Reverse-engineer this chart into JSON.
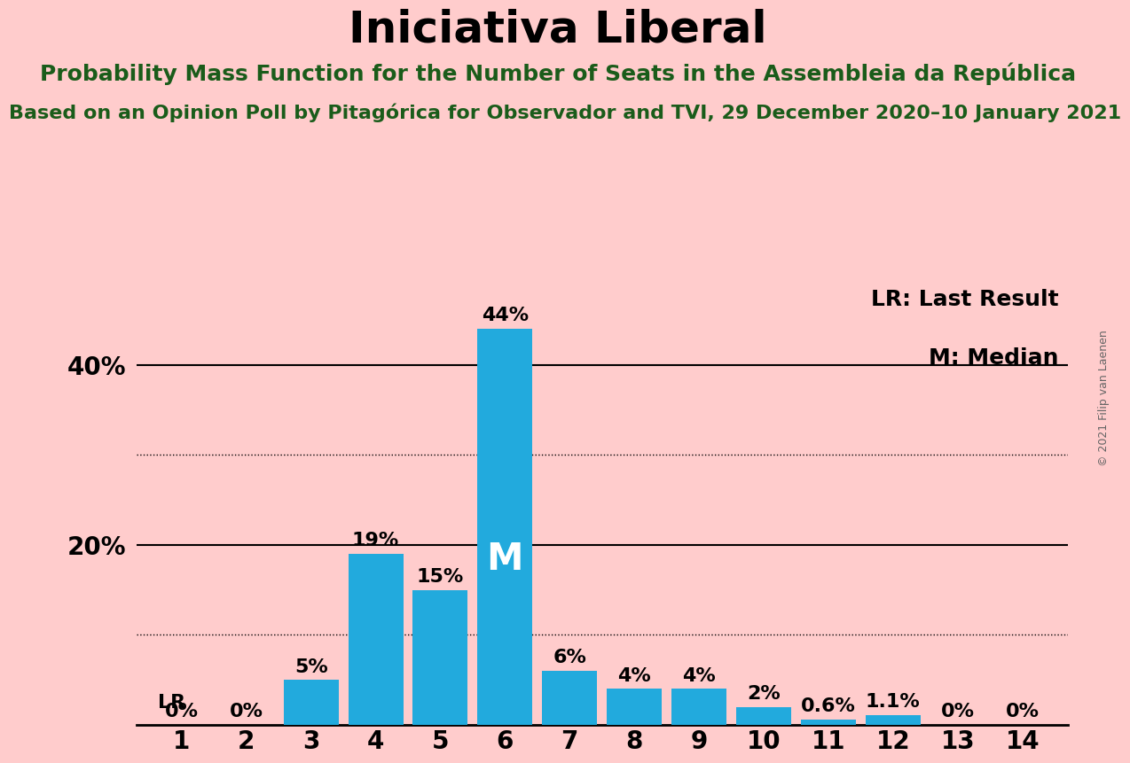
{
  "title": "Iniciativa Liberal",
  "subtitle": "Probability Mass Function for the Number of Seats in the Assembleia da República",
  "source_line": "Based on an Opinion Poll by Pitagórica for Observador and TVI, 29 December 2020–10 January 2021",
  "copyright": "© 2021 Filip van Laenen",
  "legend_lr": "LR: Last Result",
  "legend_m": "M: Median",
  "seats": [
    1,
    2,
    3,
    4,
    5,
    6,
    7,
    8,
    9,
    10,
    11,
    12,
    13,
    14
  ],
  "values": [
    0,
    0,
    5,
    19,
    15,
    44,
    6,
    4,
    4,
    2,
    0.6,
    1.1,
    0,
    0
  ],
  "bar_color": "#22aadd",
  "background_color": "#ffcccc",
  "title_color": "#000000",
  "subtitle_color": "#1a5c1a",
  "source_color": "#1a5c1a",
  "bar_label_color": "#000000",
  "median_seat": 6,
  "last_result_seat": 1,
  "ylim": [
    0,
    50
  ],
  "solid_yticks": [
    20,
    40
  ],
  "dotted_yticks": [
    10,
    30
  ],
  "label_yticks": [
    20,
    40
  ],
  "title_fontsize": 36,
  "subtitle_fontsize": 18,
  "source_fontsize": 16,
  "bar_label_fontsize": 16,
  "axis_tick_fontsize": 20,
  "legend_fontsize": 18,
  "median_label_fontsize": 30
}
